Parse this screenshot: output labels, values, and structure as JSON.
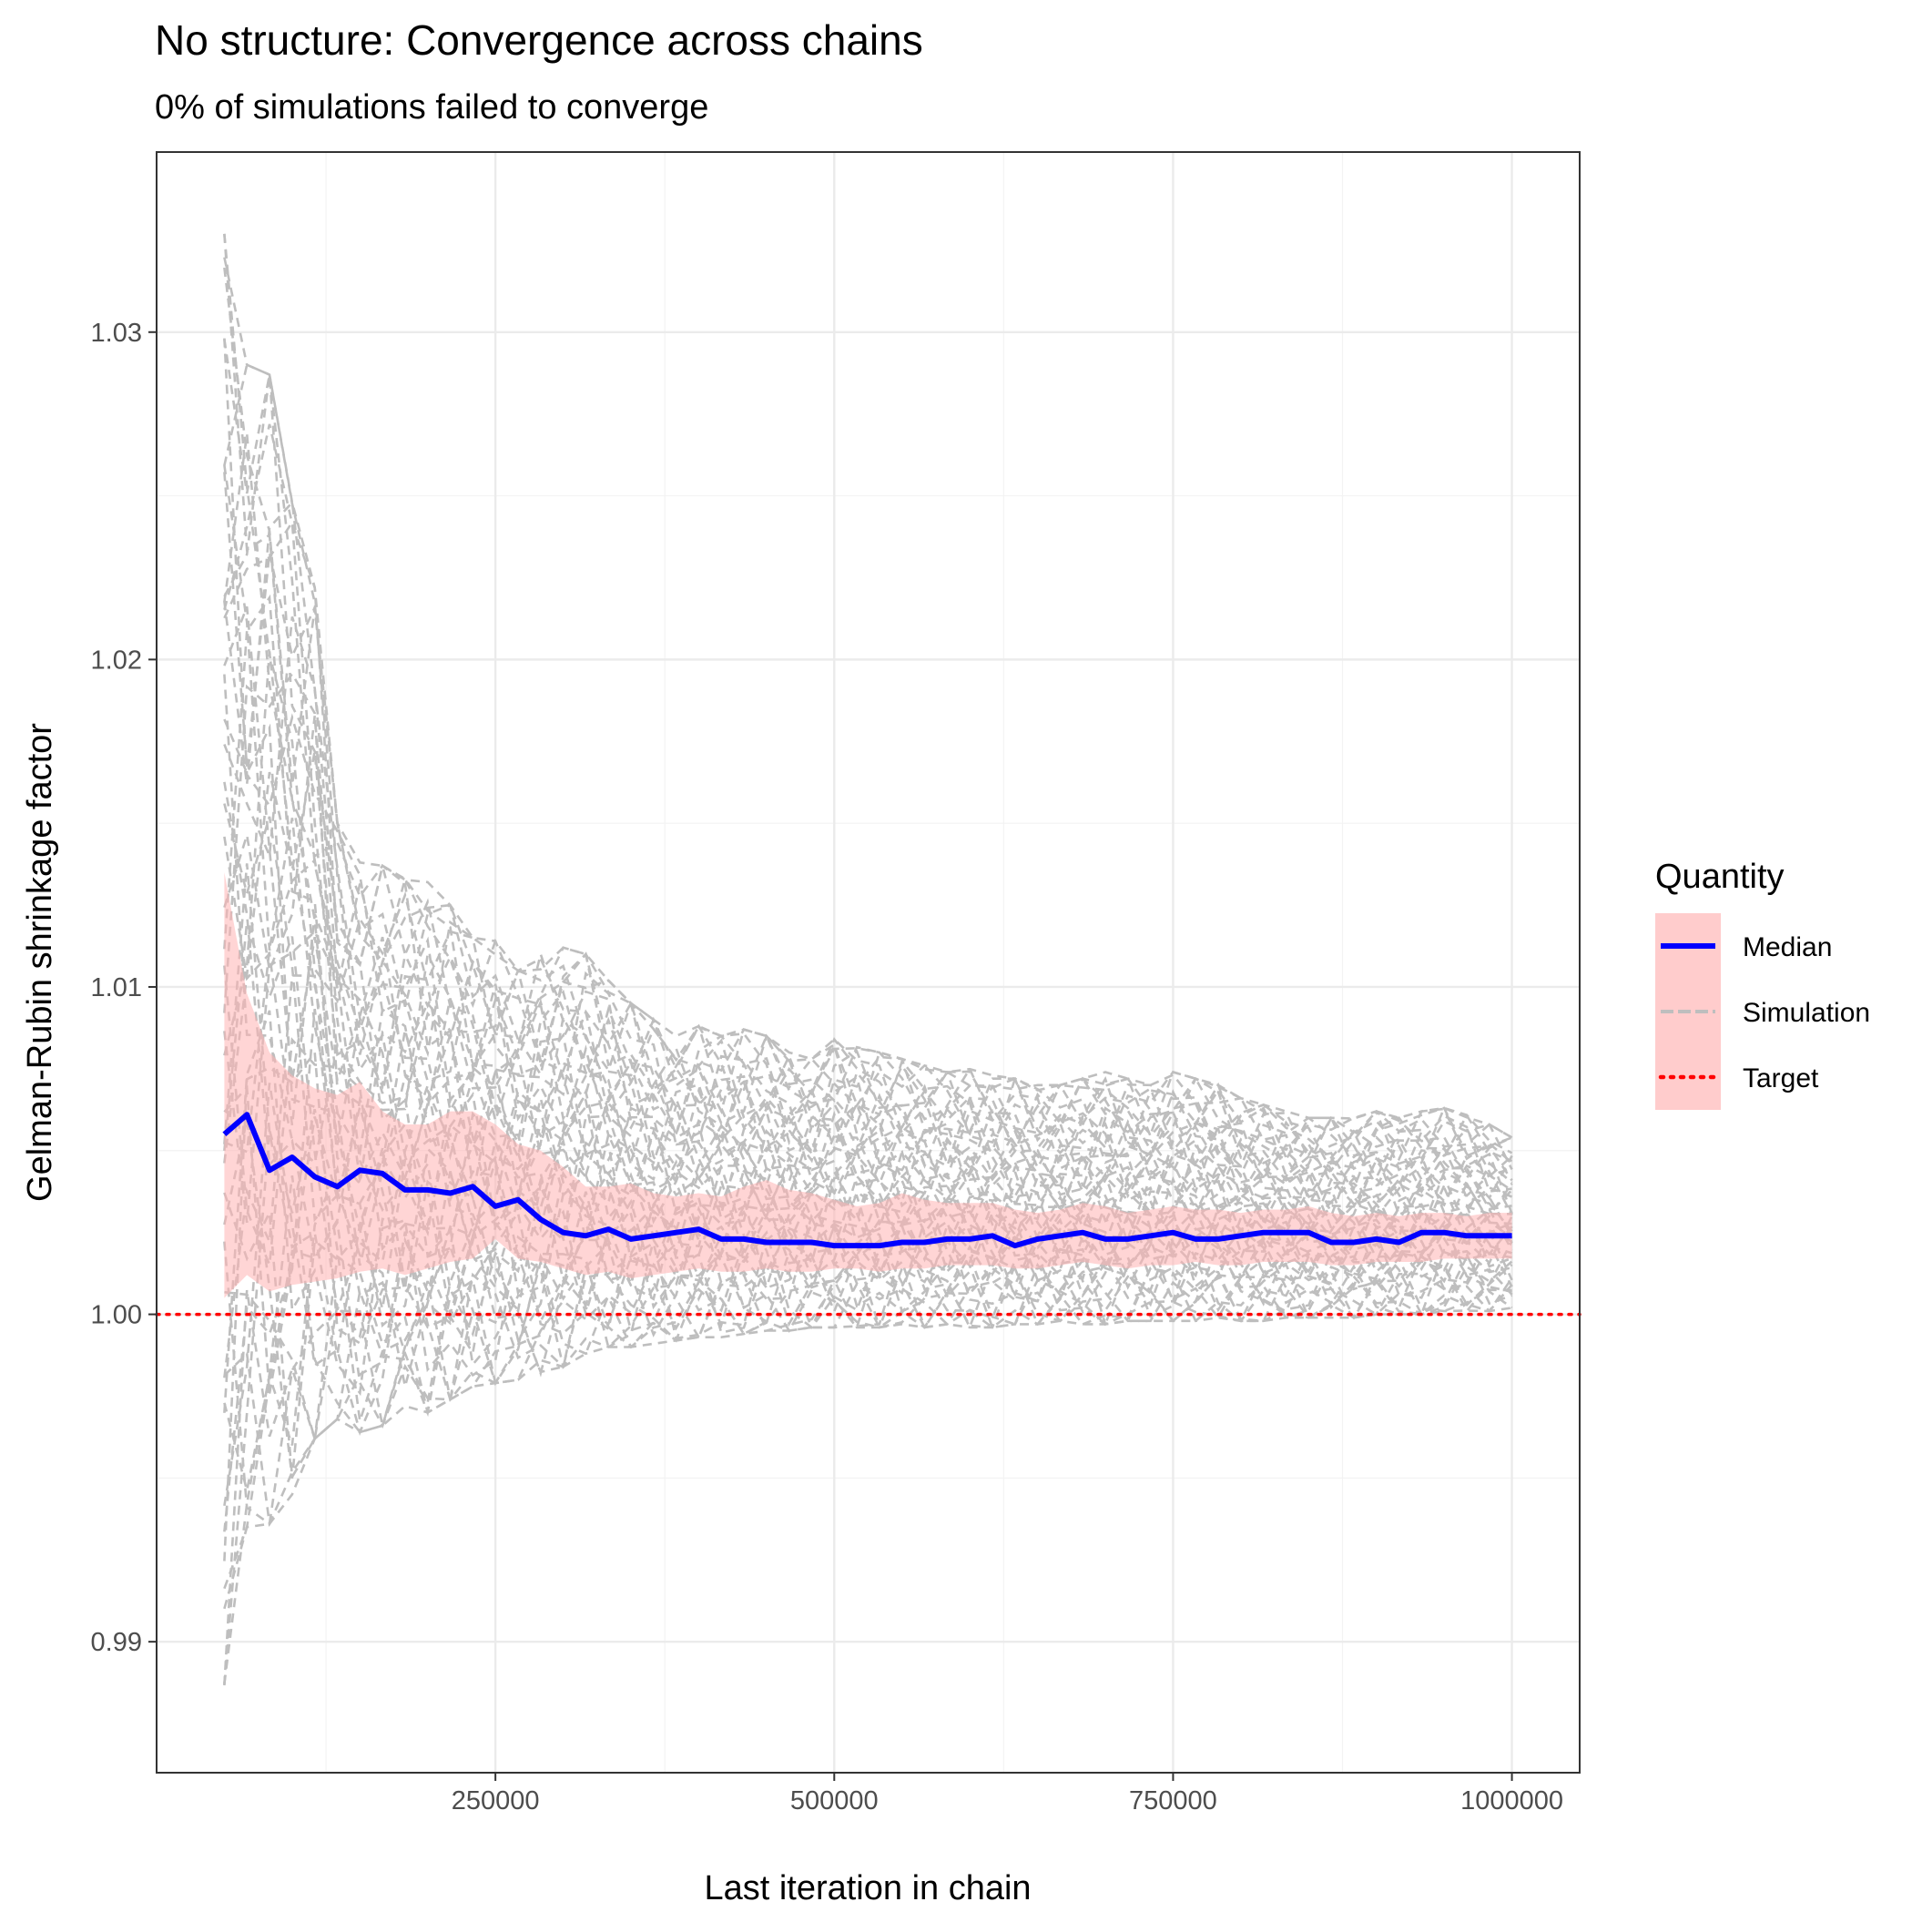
{
  "chart_data": {
    "type": "line",
    "title": "No structure: Convergence across chains",
    "subtitle": "0% of simulations failed to converge",
    "xlabel": "Last iteration in chain",
    "ylabel": "Gelman-Rubin shrinkage factor",
    "xlim": [
      0,
      1050000
    ],
    "ylim": [
      0.986,
      1.0355
    ],
    "x_ticks": [
      250000,
      500000,
      750000,
      1000000
    ],
    "x_tick_labels": [
      "250000",
      "500000",
      "750000",
      "1000000"
    ],
    "y_ticks": [
      0.99,
      1.0,
      1.01,
      1.02,
      1.03
    ],
    "y_tick_labels": [
      "0.99",
      "1.00",
      "1.01",
      "1.02",
      "1.03"
    ],
    "grid": true,
    "legend": {
      "title": "Quantity",
      "position": "right",
      "entries": [
        {
          "label": "Median",
          "color": "#0000ff",
          "style": "solid"
        },
        {
          "label": "Simulation",
          "color": "#bebebe",
          "style": "dashed"
        },
        {
          "label": "Target",
          "color": "#ff0000",
          "style": "dotted"
        }
      ],
      "key_fill": "#ffcccc"
    },
    "x": [
      50000,
      66667,
      83333,
      100000,
      116667,
      133333,
      150000,
      166667,
      183333,
      200000,
      216667,
      233333,
      250000,
      266667,
      283333,
      300000,
      316667,
      333333,
      350000,
      366667,
      383333,
      400000,
      416667,
      433333,
      450000,
      466667,
      483333,
      500000,
      516667,
      533333,
      550000,
      566667,
      583333,
      600000,
      616667,
      633333,
      650000,
      666667,
      683333,
      700000,
      716667,
      733333,
      750000,
      766667,
      783333,
      800000,
      816667,
      833333,
      850000,
      866667,
      883333,
      900000,
      916667,
      933333,
      950000,
      966667,
      983333,
      1000000
    ],
    "median": [
      1.0055,
      1.0061,
      1.0044,
      1.0048,
      1.0042,
      1.0039,
      1.0044,
      1.0043,
      1.0038,
      1.0038,
      1.0037,
      1.0039,
      1.0033,
      1.0035,
      1.0029,
      1.0025,
      1.0024,
      1.0026,
      1.0023,
      1.0024,
      1.0025,
      1.0026,
      1.0023,
      1.0023,
      1.0022,
      1.0022,
      1.0022,
      1.0021,
      1.0021,
      1.0021,
      1.0022,
      1.0022,
      1.0023,
      1.0023,
      1.0024,
      1.0021,
      1.0023,
      1.0024,
      1.0025,
      1.0023,
      1.0023,
      1.0024,
      1.0025,
      1.0023,
      1.0023,
      1.0024,
      1.0025,
      1.0025,
      1.0025,
      1.0022,
      1.0022,
      1.0023,
      1.0022,
      1.0025,
      1.0025,
      1.0024,
      1.0024,
      1.0024
    ],
    "band_upper": [
      1.0135,
      1.0098,
      1.008,
      1.0073,
      1.0069,
      1.0067,
      1.0071,
      1.0062,
      1.0058,
      1.0058,
      1.0062,
      1.0062,
      1.0058,
      1.0052,
      1.005,
      1.0045,
      1.0039,
      1.0039,
      1.004,
      1.0037,
      1.0036,
      1.0037,
      1.0036,
      1.0039,
      1.0041,
      1.0038,
      1.0037,
      1.0035,
      1.0033,
      1.0034,
      1.0037,
      1.0035,
      1.0034,
      1.0034,
      1.0034,
      1.0032,
      1.0031,
      1.0032,
      1.0034,
      1.0033,
      1.0031,
      1.0032,
      1.0033,
      1.0032,
      1.0032,
      1.0031,
      1.0032,
      1.0032,
      1.0033,
      1.0031,
      1.003,
      1.0031,
      1.003,
      1.0031,
      1.0031,
      1.003,
      1.0031,
      1.0031
    ],
    "band_lower": [
      1.0005,
      1.0012,
      1.0007,
      1.0009,
      1.001,
      1.0011,
      1.0013,
      1.0014,
      1.0012,
      1.0014,
      1.0016,
      1.0017,
      1.0023,
      1.0017,
      1.0016,
      1.0014,
      1.0012,
      1.0013,
      1.0011,
      1.0012,
      1.0013,
      1.0014,
      1.0013,
      1.0013,
      1.0014,
      1.0013,
      1.0013,
      1.0014,
      1.0014,
      1.0013,
      1.0014,
      1.0014,
      1.0015,
      1.0015,
      1.0015,
      1.0014,
      1.0014,
      1.0015,
      1.0016,
      1.0015,
      1.0014,
      1.0015,
      1.0015,
      1.0016,
      1.0015,
      1.0015,
      1.0016,
      1.0016,
      1.0016,
      1.0015,
      1.0015,
      1.0016,
      1.0016,
      1.0016,
      1.0017,
      1.0017,
      1.0017,
      1.0017
    ],
    "simulation_envelope": {
      "upper": [
        1.033,
        1.029,
        1.0287,
        1.0248,
        1.0222,
        1.015,
        1.0138,
        1.0137,
        1.0133,
        1.0132,
        1.0125,
        1.0115,
        1.0114,
        1.0105,
        1.011,
        1.0112,
        1.011,
        1.0102,
        1.0095,
        1.009,
        1.0085,
        1.0088,
        1.0085,
        1.0087,
        1.0085,
        1.008,
        1.0078,
        1.0084,
        1.0082,
        1.008,
        1.0078,
        1.0076,
        1.0074,
        1.0075,
        1.0073,
        1.0072,
        1.007,
        1.007,
        1.0072,
        1.0074,
        1.0072,
        1.007,
        1.0074,
        1.0072,
        1.007,
        1.0066,
        1.0064,
        1.0062,
        1.006,
        1.006,
        1.006,
        1.0062,
        1.006,
        1.0062,
        1.0063,
        1.0061,
        1.0058,
        1.0054
      ],
      "lower": [
        0.9882,
        0.9935,
        0.9936,
        0.9945,
        0.9962,
        0.9968,
        0.9964,
        0.9966,
        0.9972,
        0.997,
        0.9974,
        0.9978,
        0.9979,
        0.998,
        0.9982,
        0.9984,
        0.9988,
        0.999,
        0.999,
        0.9991,
        0.9992,
        0.9993,
        0.9993,
        0.9994,
        0.9995,
        0.9995,
        0.9996,
        0.9996,
        0.9996,
        0.9996,
        0.9997,
        0.9996,
        0.9997,
        0.9996,
        0.9996,
        0.9997,
        0.9997,
        0.9998,
        0.9997,
        0.9997,
        0.9998,
        0.9998,
        0.9998,
        0.9998,
        0.9999,
        0.9998,
        0.9998,
        0.9999,
        0.9999,
        0.9999,
        0.9999,
        1.0,
        1.0,
        1.0,
        1.0001,
        1.0001,
        1.0001,
        1.0002
      ]
    },
    "target": 1.0,
    "colors": {
      "median": "#0000ff",
      "simulation": "#bebebe",
      "target": "#ff0000",
      "band": "#ffb3b3",
      "panel_border": "#333333",
      "grid_major": "#ebebeb",
      "grid_minor": "#f3f3f3"
    }
  }
}
